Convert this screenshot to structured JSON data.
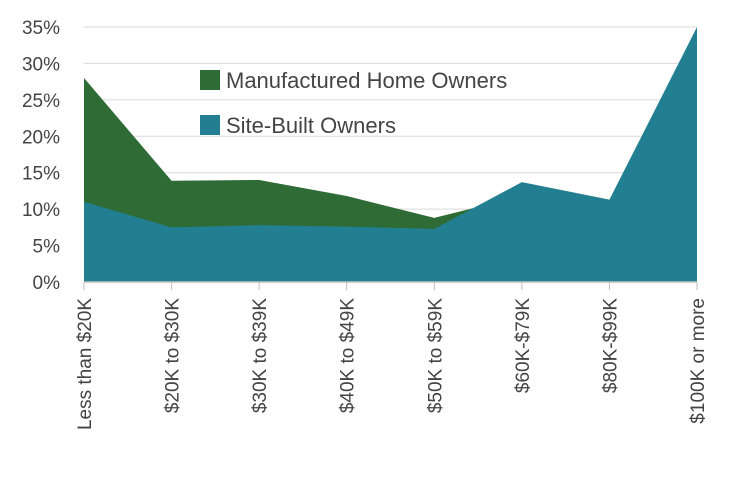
{
  "chart_data": {
    "type": "area",
    "categories": [
      "Less than $20K",
      "$20K to $30K",
      "$30K to $39K",
      "$40K to $49K",
      "$50K to $59K",
      "$60K-$79K",
      "$80K-$99K",
      "$100K or more"
    ],
    "series": [
      {
        "name": "Manufactured Home Owners",
        "color": "#2e6b35",
        "values": [
          28,
          13.9,
          14,
          11.8,
          8.8,
          11.8,
          6,
          3
        ]
      },
      {
        "name": "Site-Built Owners",
        "color": "#217f91",
        "values": [
          11,
          7.5,
          7.8,
          7.6,
          7.3,
          13.7,
          11.3,
          35
        ]
      }
    ],
    "yticks": [
      "0%",
      "5%",
      "10%",
      "15%",
      "20%",
      "25%",
      "30%",
      "35%"
    ],
    "ylim": [
      0,
      35
    ],
    "grid": true,
    "legend_position": "top-center",
    "note": ""
  }
}
